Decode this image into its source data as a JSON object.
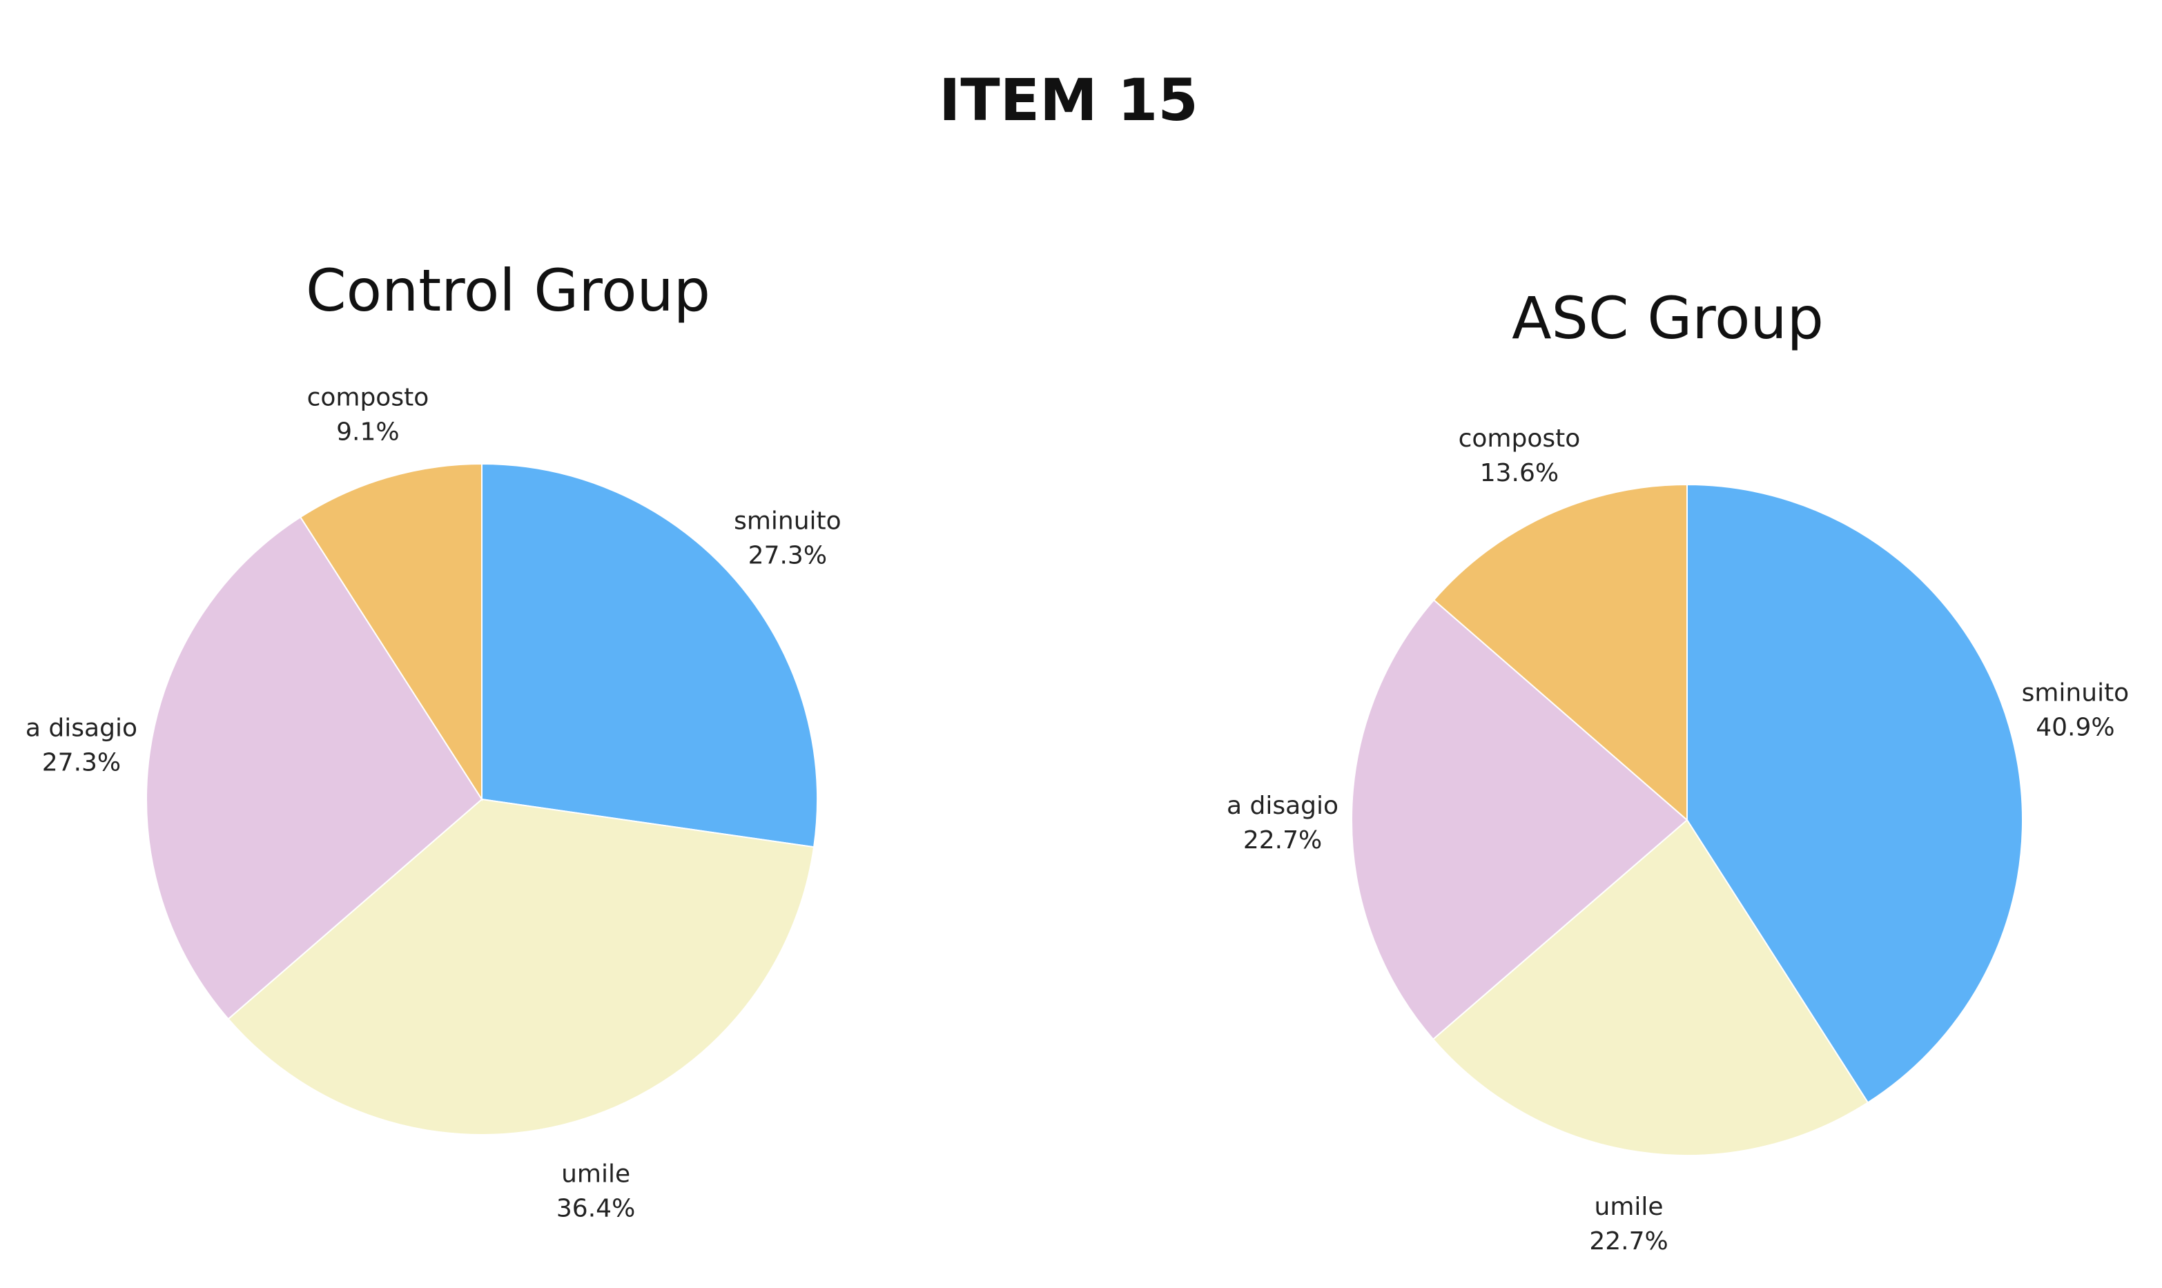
{
  "figure": {
    "title": "ITEM 15"
  },
  "colors": {
    "sminuito": "#5DB2F7",
    "umile": "#F5F2C9",
    "a disagio": "#E4C7E3",
    "composto": "#F2C16C"
  },
  "chart_data": [
    {
      "type": "pie",
      "title": "Control Group",
      "categories": [
        "sminuito",
        "umile",
        "a disagio",
        "composto"
      ],
      "values": [
        27.3,
        36.4,
        27.3,
        9.1
      ],
      "labels": [
        "27.3%",
        "36.4%",
        "27.3%",
        "9.1%"
      ],
      "direction": "clockwise",
      "start": "12 o'clock",
      "legend": "none"
    },
    {
      "type": "pie",
      "title": "ASC Group",
      "categories": [
        "sminuito",
        "umile",
        "a disagio",
        "composto"
      ],
      "values": [
        40.9,
        22.7,
        22.7,
        13.6
      ],
      "labels": [
        "40.9%",
        "22.7%",
        "22.7%",
        "13.6%"
      ],
      "direction": "clockwise",
      "start": "12 o'clock",
      "legend": "none"
    }
  ]
}
